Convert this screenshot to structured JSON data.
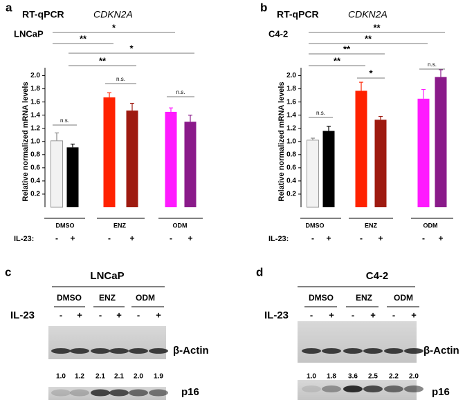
{
  "chart_data": [
    {
      "type": "bar",
      "panel": "a",
      "title": "RT-qPCR",
      "gene": "CDKN2A",
      "cell_line": "LNCaP",
      "y_label": "Relative normalized mRNA levels",
      "groups": [
        "DMSO",
        "ENZ",
        "ODM"
      ],
      "category_label": "IL-23:",
      "categories": [
        "-",
        "+",
        "-",
        "+",
        "-",
        "+"
      ],
      "values": [
        1.01,
        0.91,
        1.67,
        1.47,
        1.45,
        1.3
      ],
      "errors": [
        0.12,
        0.05,
        0.07,
        0.11,
        0.06,
        0.1
      ],
      "colors": [
        "#f2f2f2",
        "#000000",
        "#ff2200",
        "#9e1a10",
        "#ff1aff",
        "#8a1a8a"
      ],
      "ylim": [
        0,
        2.1
      ],
      "yticks": [
        0.2,
        0.4,
        0.6,
        0.8,
        {
          "value": 1,
          "label": "1.0"
        },
        1.2,
        1.4,
        1.6,
        1.8,
        {
          "value": 2,
          "label": "2.0"
        }
      ],
      "annotations": [
        "*",
        "**",
        "*",
        "**",
        "n.s.",
        "n.s.",
        "n.s."
      ]
    },
    {
      "type": "bar",
      "panel": "b",
      "title": "RT-qPCR",
      "gene": "CDKN2A",
      "cell_line": "C4-2",
      "y_label": "Relative normalized mRNA levels",
      "groups": [
        "DMSO",
        "ENZ",
        "ODM"
      ],
      "category_label": "IL-23:",
      "categories": [
        "-",
        "+",
        "-",
        "+",
        "-",
        "+"
      ],
      "values": [
        1.02,
        1.16,
        1.77,
        1.33,
        1.65,
        1.98
      ],
      "errors": [
        0.03,
        0.07,
        0.13,
        0.05,
        0.14,
        0.11
      ],
      "colors": [
        "#f2f2f2",
        "#000000",
        "#ff2200",
        "#9e1a10",
        "#ff1aff",
        "#8a1a8a"
      ],
      "ylim": [
        0,
        2.1
      ],
      "yticks": [
        0.2,
        0.4,
        0.6,
        0.8,
        {
          "value": 1,
          "label": "1.0"
        },
        1.2,
        1.4,
        1.6,
        1.8,
        {
          "value": 2,
          "label": "2.0"
        }
      ],
      "annotations": [
        "**",
        "**",
        "**",
        "**",
        "*",
        "n.s.",
        "n.s."
      ]
    }
  ],
  "blots": [
    {
      "panel": "c",
      "title": "LNCaP",
      "groups": [
        "DMSO",
        "ENZ",
        "ODM"
      ],
      "treatment": "IL-23",
      "lanes": [
        "-",
        "+",
        "-",
        "+",
        "-",
        "+"
      ],
      "loading_control": "β-Actin",
      "target": "p16",
      "quantification": [
        "1.0",
        "1.2",
        "2.1",
        "2.1",
        "2.0",
        "1.9"
      ]
    },
    {
      "panel": "d",
      "title": "C4-2",
      "groups": [
        "DMSO",
        "ENZ",
        "ODM"
      ],
      "treatment": "IL-23",
      "lanes": [
        "-",
        "+",
        "-",
        "+",
        "-",
        "+"
      ],
      "loading_control": "β-Actin",
      "target": "p16",
      "quantification": [
        "1.0",
        "1.8",
        "3.6",
        "2.5",
        "2.2",
        "2.0"
      ]
    }
  ]
}
